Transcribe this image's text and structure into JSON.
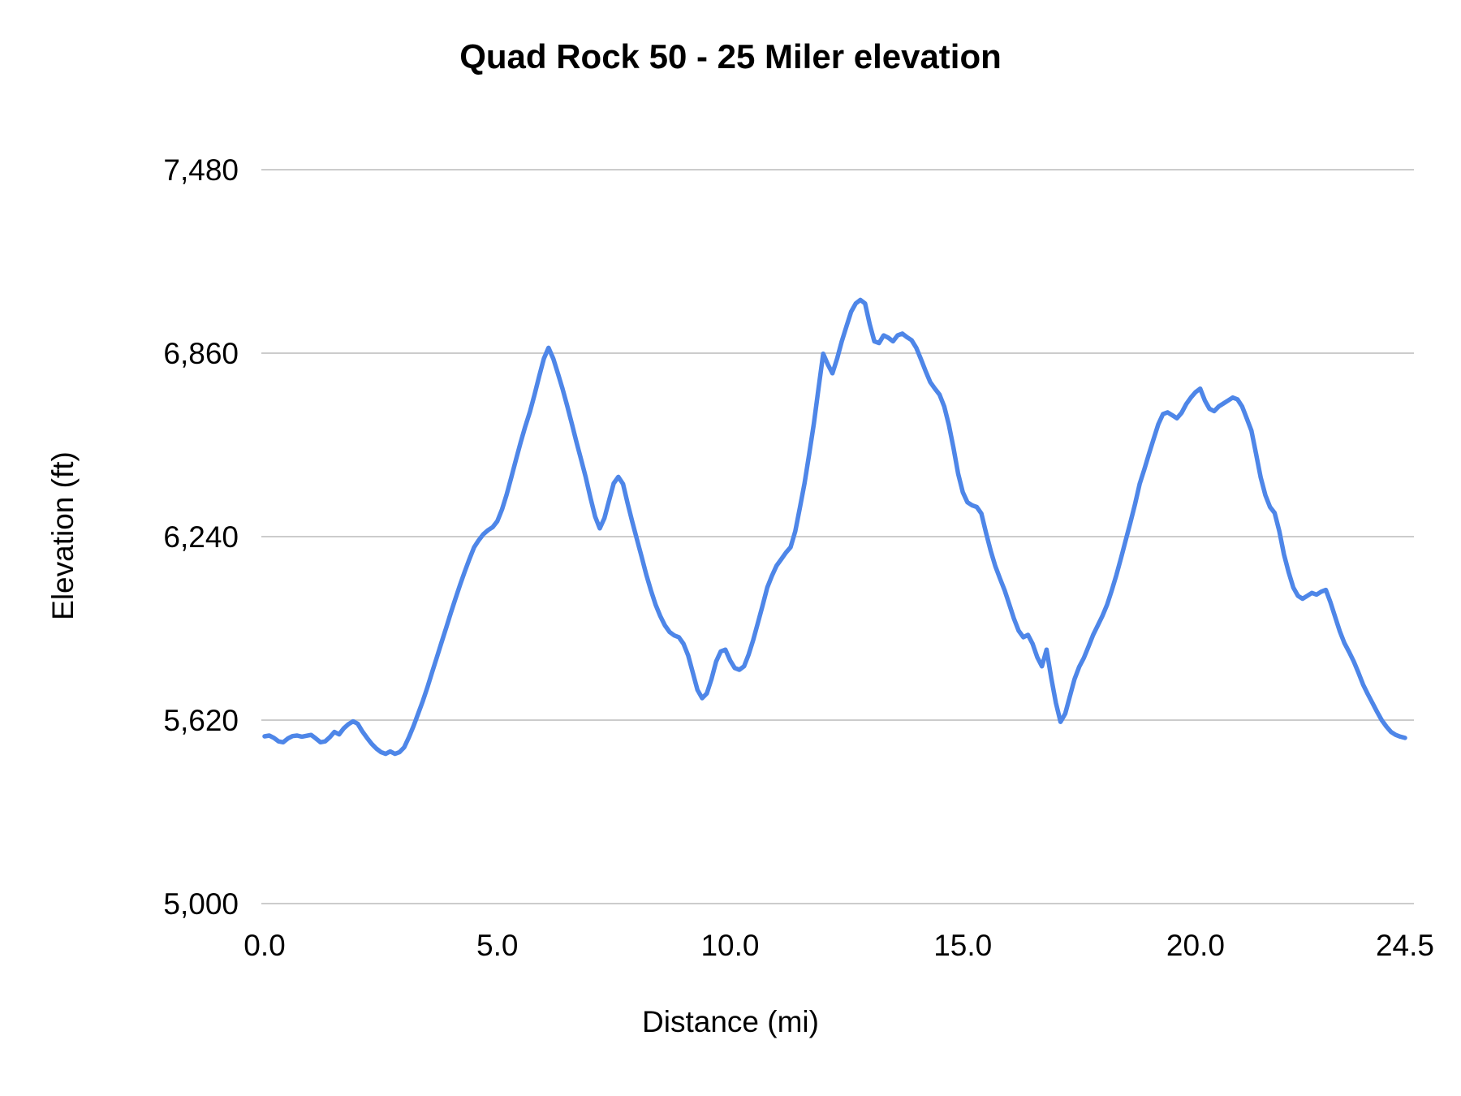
{
  "style": {
    "background": "#ffffff",
    "gridline_color": "#cccccc",
    "text_color": "#000000",
    "title_color": "#000000"
  },
  "chart_data": {
    "type": "line",
    "title": "Quad Rock 50 - 25 Miler elevation",
    "xlabel": "Distance (mi)",
    "ylabel": "Elevation (ft)",
    "xlim": [
      0,
      24.5
    ],
    "ylim": [
      5000,
      7480
    ],
    "grid": "horizontal-only",
    "legend": "none",
    "x_ticks": [
      {
        "value": 0.0,
        "label": "0.0"
      },
      {
        "value": 5.0,
        "label": "5.0"
      },
      {
        "value": 10.0,
        "label": "10.0"
      },
      {
        "value": 15.0,
        "label": "15.0"
      },
      {
        "value": 20.0,
        "label": "20.0"
      },
      {
        "value": 24.5,
        "label": "24.5"
      }
    ],
    "y_ticks": [
      {
        "value": 5000,
        "label": "5,000"
      },
      {
        "value": 5620,
        "label": "5,620"
      },
      {
        "value": 6240,
        "label": "6,240"
      },
      {
        "value": 6860,
        "label": "6,860"
      },
      {
        "value": 7480,
        "label": "7,480"
      }
    ],
    "series": [
      {
        "name": "elevation",
        "color": "#4e86e8",
        "points": [
          [
            0.0,
            5565
          ],
          [
            0.1,
            5568
          ],
          [
            0.2,
            5560
          ],
          [
            0.3,
            5548
          ],
          [
            0.4,
            5545
          ],
          [
            0.5,
            5558
          ],
          [
            0.6,
            5566
          ],
          [
            0.7,
            5568
          ],
          [
            0.8,
            5564
          ],
          [
            0.9,
            5567
          ],
          [
            1.0,
            5570
          ],
          [
            1.1,
            5558
          ],
          [
            1.2,
            5545
          ],
          [
            1.3,
            5548
          ],
          [
            1.4,
            5562
          ],
          [
            1.5,
            5580
          ],
          [
            1.6,
            5572
          ],
          [
            1.7,
            5592
          ],
          [
            1.8,
            5606
          ],
          [
            1.9,
            5616
          ],
          [
            2.0,
            5608
          ],
          [
            2.1,
            5582
          ],
          [
            2.2,
            5560
          ],
          [
            2.3,
            5540
          ],
          [
            2.4,
            5524
          ],
          [
            2.5,
            5512
          ],
          [
            2.6,
            5506
          ],
          [
            2.7,
            5514
          ],
          [
            2.8,
            5506
          ],
          [
            2.9,
            5512
          ],
          [
            3.0,
            5528
          ],
          [
            3.1,
            5562
          ],
          [
            3.2,
            5600
          ],
          [
            3.3,
            5642
          ],
          [
            3.4,
            5685
          ],
          [
            3.5,
            5732
          ],
          [
            3.6,
            5782
          ],
          [
            3.7,
            5832
          ],
          [
            3.8,
            5882
          ],
          [
            3.9,
            5932
          ],
          [
            4.0,
            5982
          ],
          [
            4.1,
            6030
          ],
          [
            4.2,
            6078
          ],
          [
            4.3,
            6122
          ],
          [
            4.4,
            6164
          ],
          [
            4.5,
            6204
          ],
          [
            4.6,
            6228
          ],
          [
            4.7,
            6248
          ],
          [
            4.8,
            6262
          ],
          [
            4.9,
            6272
          ],
          [
            5.0,
            6292
          ],
          [
            5.1,
            6332
          ],
          [
            5.2,
            6382
          ],
          [
            5.3,
            6440
          ],
          [
            5.4,
            6500
          ],
          [
            5.5,
            6558
          ],
          [
            5.6,
            6612
          ],
          [
            5.7,
            6662
          ],
          [
            5.8,
            6720
          ],
          [
            5.9,
            6782
          ],
          [
            6.0,
            6842
          ],
          [
            6.1,
            6878
          ],
          [
            6.2,
            6842
          ],
          [
            6.3,
            6792
          ],
          [
            6.4,
            6740
          ],
          [
            6.5,
            6682
          ],
          [
            6.6,
            6622
          ],
          [
            6.7,
            6560
          ],
          [
            6.8,
            6500
          ],
          [
            6.9,
            6440
          ],
          [
            7.0,
            6372
          ],
          [
            7.1,
            6308
          ],
          [
            7.2,
            6268
          ],
          [
            7.3,
            6302
          ],
          [
            7.4,
            6362
          ],
          [
            7.5,
            6420
          ],
          [
            7.6,
            6442
          ],
          [
            7.7,
            6418
          ],
          [
            7.8,
            6352
          ],
          [
            7.9,
            6290
          ],
          [
            8.0,
            6230
          ],
          [
            8.1,
            6172
          ],
          [
            8.2,
            6112
          ],
          [
            8.3,
            6058
          ],
          [
            8.4,
            6010
          ],
          [
            8.5,
            5972
          ],
          [
            8.6,
            5940
          ],
          [
            8.7,
            5918
          ],
          [
            8.8,
            5906
          ],
          [
            8.9,
            5900
          ],
          [
            9.0,
            5878
          ],
          [
            9.1,
            5838
          ],
          [
            9.2,
            5780
          ],
          [
            9.3,
            5722
          ],
          [
            9.4,
            5694
          ],
          [
            9.5,
            5710
          ],
          [
            9.6,
            5758
          ],
          [
            9.7,
            5818
          ],
          [
            9.8,
            5852
          ],
          [
            9.9,
            5858
          ],
          [
            10.0,
            5822
          ],
          [
            10.1,
            5796
          ],
          [
            10.2,
            5790
          ],
          [
            10.3,
            5802
          ],
          [
            10.4,
            5842
          ],
          [
            10.5,
            5892
          ],
          [
            10.6,
            5950
          ],
          [
            10.7,
            6008
          ],
          [
            10.8,
            6068
          ],
          [
            10.9,
            6108
          ],
          [
            11.0,
            6142
          ],
          [
            11.1,
            6164
          ],
          [
            11.2,
            6186
          ],
          [
            11.3,
            6204
          ],
          [
            11.4,
            6258
          ],
          [
            11.5,
            6338
          ],
          [
            11.6,
            6420
          ],
          [
            11.7,
            6520
          ],
          [
            11.8,
            6622
          ],
          [
            11.9,
            6740
          ],
          [
            12.0,
            6858
          ],
          [
            12.1,
            6822
          ],
          [
            12.2,
            6792
          ],
          [
            12.3,
            6842
          ],
          [
            12.4,
            6900
          ],
          [
            12.5,
            6950
          ],
          [
            12.6,
            7000
          ],
          [
            12.7,
            7028
          ],
          [
            12.8,
            7040
          ],
          [
            12.9,
            7028
          ],
          [
            13.0,
            6958
          ],
          [
            13.1,
            6900
          ],
          [
            13.2,
            6894
          ],
          [
            13.3,
            6920
          ],
          [
            13.4,
            6912
          ],
          [
            13.5,
            6900
          ],
          [
            13.6,
            6920
          ],
          [
            13.7,
            6926
          ],
          [
            13.8,
            6914
          ],
          [
            13.9,
            6904
          ],
          [
            14.0,
            6878
          ],
          [
            14.1,
            6840
          ],
          [
            14.2,
            6800
          ],
          [
            14.3,
            6762
          ],
          [
            14.4,
            6740
          ],
          [
            14.5,
            6720
          ],
          [
            14.6,
            6680
          ],
          [
            14.7,
            6618
          ],
          [
            14.8,
            6540
          ],
          [
            14.9,
            6452
          ],
          [
            15.0,
            6390
          ],
          [
            15.1,
            6356
          ],
          [
            15.2,
            6346
          ],
          [
            15.3,
            6340
          ],
          [
            15.4,
            6318
          ],
          [
            15.5,
            6252
          ],
          [
            15.6,
            6192
          ],
          [
            15.7,
            6140
          ],
          [
            15.8,
            6098
          ],
          [
            15.9,
            6058
          ],
          [
            16.0,
            6010
          ],
          [
            16.1,
            5962
          ],
          [
            16.2,
            5922
          ],
          [
            16.3,
            5900
          ],
          [
            16.4,
            5908
          ],
          [
            16.5,
            5878
          ],
          [
            16.6,
            5832
          ],
          [
            16.7,
            5802
          ],
          [
            16.8,
            5858
          ],
          [
            16.9,
            5762
          ],
          [
            17.0,
            5678
          ],
          [
            17.1,
            5614
          ],
          [
            17.2,
            5642
          ],
          [
            17.3,
            5700
          ],
          [
            17.4,
            5758
          ],
          [
            17.5,
            5800
          ],
          [
            17.6,
            5830
          ],
          [
            17.7,
            5868
          ],
          [
            17.8,
            5908
          ],
          [
            17.9,
            5940
          ],
          [
            18.0,
            5972
          ],
          [
            18.1,
            6010
          ],
          [
            18.2,
            6058
          ],
          [
            18.3,
            6110
          ],
          [
            18.4,
            6168
          ],
          [
            18.5,
            6228
          ],
          [
            18.6,
            6288
          ],
          [
            18.7,
            6350
          ],
          [
            18.8,
            6418
          ],
          [
            18.9,
            6468
          ],
          [
            19.0,
            6520
          ],
          [
            19.1,
            6570
          ],
          [
            19.2,
            6620
          ],
          [
            19.3,
            6654
          ],
          [
            19.4,
            6660
          ],
          [
            19.5,
            6650
          ],
          [
            19.6,
            6640
          ],
          [
            19.7,
            6658
          ],
          [
            19.8,
            6688
          ],
          [
            19.9,
            6710
          ],
          [
            20.0,
            6728
          ],
          [
            20.1,
            6740
          ],
          [
            20.2,
            6700
          ],
          [
            20.3,
            6672
          ],
          [
            20.4,
            6664
          ],
          [
            20.5,
            6680
          ],
          [
            20.6,
            6690
          ],
          [
            20.7,
            6700
          ],
          [
            20.8,
            6710
          ],
          [
            20.9,
            6704
          ],
          [
            21.0,
            6680
          ],
          [
            21.1,
            6640
          ],
          [
            21.2,
            6598
          ],
          [
            21.3,
            6520
          ],
          [
            21.4,
            6440
          ],
          [
            21.5,
            6380
          ],
          [
            21.6,
            6340
          ],
          [
            21.7,
            6320
          ],
          [
            21.8,
            6258
          ],
          [
            21.9,
            6180
          ],
          [
            22.0,
            6120
          ],
          [
            22.1,
            6068
          ],
          [
            22.2,
            6040
          ],
          [
            22.3,
            6030
          ],
          [
            22.4,
            6040
          ],
          [
            22.5,
            6050
          ],
          [
            22.6,
            6044
          ],
          [
            22.7,
            6054
          ],
          [
            22.8,
            6060
          ],
          [
            22.9,
            6018
          ],
          [
            23.0,
            5968
          ],
          [
            23.1,
            5920
          ],
          [
            23.2,
            5880
          ],
          [
            23.3,
            5850
          ],
          [
            23.4,
            5818
          ],
          [
            23.5,
            5780
          ],
          [
            23.6,
            5740
          ],
          [
            23.7,
            5708
          ],
          [
            23.8,
            5678
          ],
          [
            23.9,
            5648
          ],
          [
            24.0,
            5620
          ],
          [
            24.1,
            5598
          ],
          [
            24.2,
            5580
          ],
          [
            24.3,
            5570
          ],
          [
            24.4,
            5564
          ],
          [
            24.5,
            5560
          ]
        ]
      }
    ]
  }
}
